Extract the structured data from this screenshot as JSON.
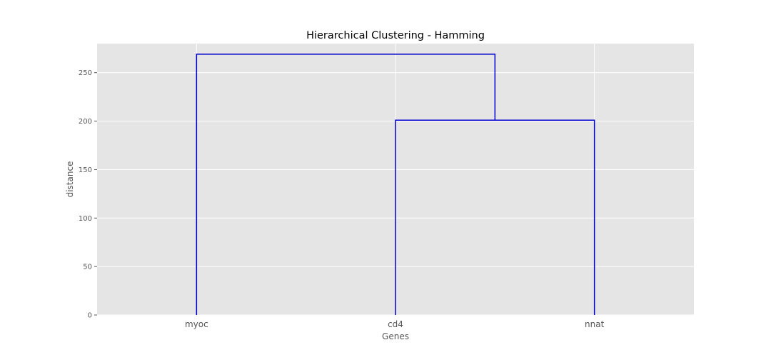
{
  "chart_data": {
    "type": "dendrogram",
    "title": "Hierarchical Clustering - Hamming",
    "xlabel": "Genes",
    "ylabel": "distance",
    "categories": [
      "myoc",
      "cd4",
      "nnat"
    ],
    "ylim": [
      0,
      280
    ],
    "yticks": [
      0,
      50,
      100,
      150,
      200,
      250
    ],
    "grid": true,
    "merges": [
      {
        "left": "cd4",
        "right": "nnat",
        "height": 201
      },
      {
        "left": "myoc",
        "right": "cd4+nnat",
        "height": 269
      }
    ],
    "link_color": "#0000cc",
    "background_color": "#e5e5e5",
    "grid_color": "#ffffff"
  }
}
